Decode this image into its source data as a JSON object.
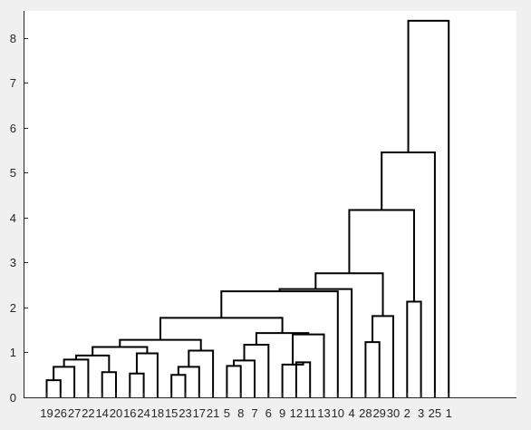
{
  "chart_data": {
    "type": "dendrogram",
    "title": "",
    "xlabel": "",
    "ylabel": "",
    "ylim": [
      0,
      8.6
    ],
    "yticks": [
      0,
      1,
      2,
      3,
      4,
      5,
      6,
      7,
      8
    ],
    "grid": false,
    "box": false,
    "leaf_order": [
      "19",
      "26",
      "27",
      "22",
      "14",
      "20",
      "16",
      "24",
      "18",
      "15",
      "23",
      "17",
      "21",
      "5",
      "8",
      "7",
      "6",
      "9",
      "12",
      "11",
      "13",
      "10",
      "4",
      "28",
      "29",
      "30",
      "2",
      "3",
      "25",
      "1"
    ],
    "merges": [
      {
        "id": "A",
        "left": "19",
        "right": "26",
        "height": 0.38
      },
      {
        "id": "B",
        "left": "A",
        "right": "27",
        "height": 0.68
      },
      {
        "id": "C",
        "left": "B",
        "right": "22",
        "height": 0.84
      },
      {
        "id": "D",
        "left": "14",
        "right": "20",
        "height": 0.56
      },
      {
        "id": "E",
        "left": "C",
        "right": "D",
        "height": 0.93
      },
      {
        "id": "F",
        "left": "16",
        "right": "24",
        "height": 0.53
      },
      {
        "id": "G",
        "left": "F",
        "right": "18",
        "height": 0.98
      },
      {
        "id": "H",
        "left": "E",
        "right": "G",
        "height": 1.12
      },
      {
        "id": "I",
        "left": "15",
        "right": "23",
        "height": 0.5
      },
      {
        "id": "J",
        "left": "I",
        "right": "17",
        "height": 0.68
      },
      {
        "id": "K",
        "left": "J",
        "right": "21",
        "height": 1.04
      },
      {
        "id": "L",
        "left": "H",
        "right": "K",
        "height": 1.28
      },
      {
        "id": "M",
        "left": "5",
        "right": "8",
        "height": 0.7
      },
      {
        "id": "N",
        "left": "M",
        "right": "7",
        "height": 0.82
      },
      {
        "id": "O",
        "left": "N",
        "right": "6",
        "height": 1.17
      },
      {
        "id": "P",
        "left": "12",
        "right": "11",
        "height": 0.78
      },
      {
        "id": "Q",
        "left": "9",
        "right": "P",
        "height": 0.73
      },
      {
        "id": "R",
        "left": "Q",
        "right": "13",
        "height": 1.4
      },
      {
        "id": "S",
        "left": "O",
        "right": "R",
        "height": 1.43
      },
      {
        "id": "T",
        "left": "L",
        "right": "S",
        "height": 1.77
      },
      {
        "id": "U",
        "left": "T",
        "right": "10",
        "height": 2.36
      },
      {
        "id": "V",
        "left": "U",
        "right": "4",
        "height": 2.41
      },
      {
        "id": "W",
        "left": "28",
        "right": "29",
        "height": 1.23
      },
      {
        "id": "X",
        "left": "W",
        "right": "30",
        "height": 1.81
      },
      {
        "id": "Y",
        "left": "V",
        "right": "X",
        "height": 2.76
      },
      {
        "id": "Z",
        "left": "2",
        "right": "3",
        "height": 2.13
      },
      {
        "id": "AA",
        "left": "Y",
        "right": "Z",
        "height": 4.17
      },
      {
        "id": "AB",
        "left": "AA",
        "right": "25",
        "height": 5.45
      },
      {
        "id": "AC",
        "left": "AB",
        "right": "1",
        "height": 8.38
      }
    ]
  }
}
